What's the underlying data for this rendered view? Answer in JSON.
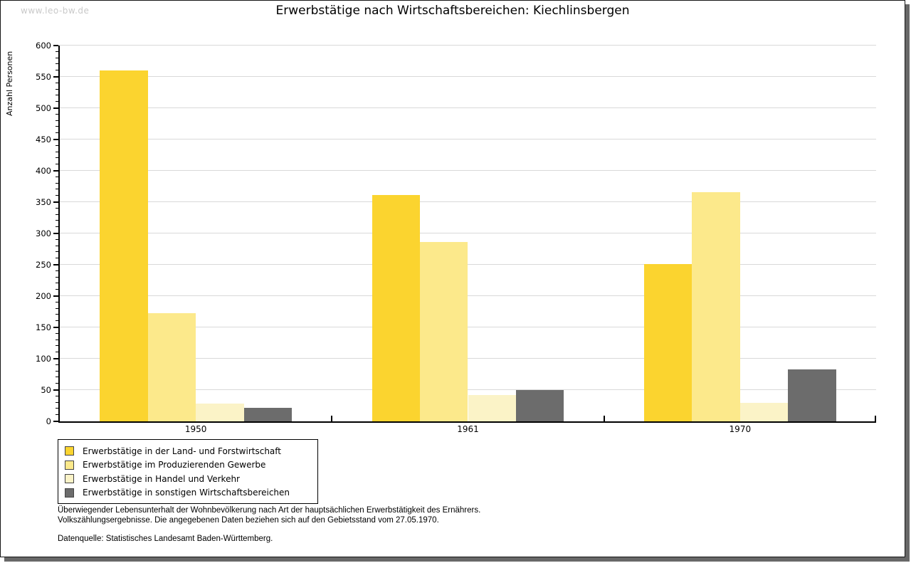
{
  "watermark": "www.leo-bw.de",
  "title": "Erwerbstätige nach Wirtschaftsbereichen: Kiechlinsbergen",
  "chart_data": {
    "type": "bar",
    "title": "Erwerbstätige nach Wirtschaftsbereichen: Kiechlinsbergen",
    "xlabel": "",
    "ylabel": "Anzahl Personen",
    "ylim": [
      0,
      600
    ],
    "ytick_step": 50,
    "minor_tick_step": 10,
    "grid": "horizontal",
    "legend_position": "bottom-left",
    "categories": [
      "1950",
      "1961",
      "1970"
    ],
    "series": [
      {
        "name": "Erwerbstätige in der Land- und Forstwirtschaft",
        "color": "#fbd42f",
        "values": [
          560,
          361,
          251
        ]
      },
      {
        "name": "Erwerbstätige im Produzierenden Gewerbe",
        "color": "#fce98b",
        "values": [
          173,
          286,
          366
        ]
      },
      {
        "name": "Erwerbstätige in Handel und Verkehr",
        "color": "#fbf3c7",
        "values": [
          28,
          42,
          30
        ]
      },
      {
        "name": "Erwerbstätige in sonstigen Wirtschaftsbereichen",
        "color": "#6c6c6c",
        "values": [
          22,
          50,
          83
        ]
      }
    ]
  },
  "footer": {
    "note_line1": "Überwiegender Lebensunterhalt der Wohnbevölkerung nach Art der hauptsächlichen Erwerbstätigkeit des Ernährers.",
    "note_line2": "Volkszählungsergebnisse. Die angegebenen Daten beziehen sich auf den Gebietsstand vom 27.05.1970.",
    "source": "Datenquelle: Statistisches Landesamt Baden-Württemberg."
  }
}
